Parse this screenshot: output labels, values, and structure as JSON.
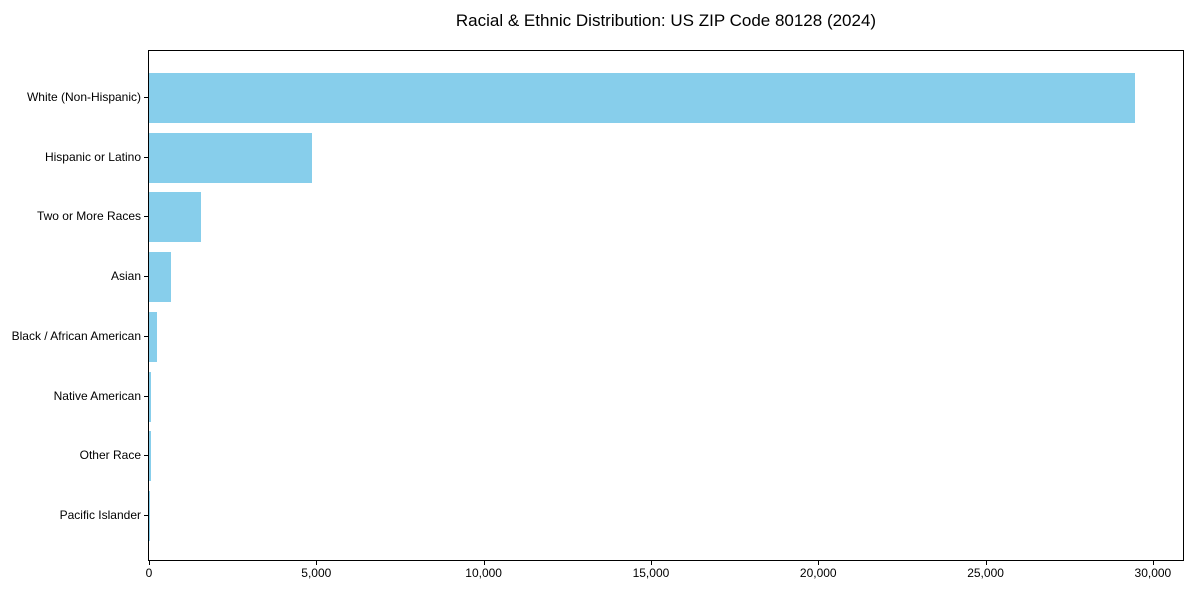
{
  "title": "Racial & Ethnic Distribution: US ZIP Code 80128 (2024)",
  "chart_data": {
    "type": "bar",
    "orientation": "horizontal",
    "title": "Racial & Ethnic Distribution: US ZIP Code 80128 (2024)",
    "categories": [
      "White (Non-Hispanic)",
      "Hispanic or Latino",
      "Two or More Races",
      "Asian",
      "Black / African American",
      "Native American",
      "Other Race",
      "Pacific Islander"
    ],
    "values": [
      29460,
      4870,
      1550,
      655,
      230,
      70,
      50,
      10
    ],
    "bar_color": "#87CEEB",
    "xlabel": "",
    "ylabel": "",
    "xlim": [
      0,
      30900
    ],
    "xticks": [
      0,
      5000,
      10000,
      15000,
      20000,
      25000,
      30000
    ],
    "xtick_labels": [
      "0",
      "5,000",
      "10,000",
      "15,000",
      "20,000",
      "25,000",
      "30,000"
    ],
    "grid": false,
    "legend": null
  }
}
